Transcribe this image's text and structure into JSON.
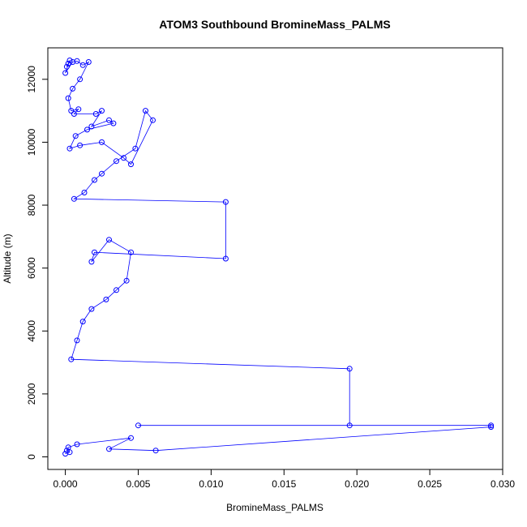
{
  "chart_data": {
    "type": "scatter",
    "title": "ATOM3 Southbound BromineMass_PALMS",
    "xlabel": "BromineMass_PALMS",
    "ylabel": "Altitude (m)",
    "xlim": [
      -0.0012,
      0.03
    ],
    "ylim": [
      -400,
      13000
    ],
    "x_ticks": [
      0.0,
      0.005,
      0.01,
      0.015,
      0.02,
      0.025,
      0.03
    ],
    "x_tick_labels": [
      "0.000",
      "0.005",
      "0.010",
      "0.015",
      "0.020",
      "0.025",
      "0.030"
    ],
    "y_ticks": [
      0,
      2000,
      4000,
      6000,
      8000,
      10000,
      12000
    ],
    "y_tick_labels": [
      "0",
      "2000",
      "4000",
      "6000",
      "8000",
      "10000",
      "12000"
    ],
    "grid": false,
    "legend": "none",
    "series": [
      {
        "color": "#0000ff",
        "marker": "open-circle",
        "line": true,
        "x": [
          0.0002,
          0.0001,
          0.0003,
          0.0,
          0.0005,
          0.0008,
          0.0012,
          0.0016,
          0.001,
          0.0005,
          0.0002,
          0.0004,
          0.0009,
          0.0006,
          0.0021,
          0.0025,
          0.0018,
          0.003,
          0.0033,
          0.0015,
          0.0007,
          0.0003,
          0.001,
          0.0025,
          0.004,
          0.0045,
          0.006,
          0.0055,
          0.0048,
          0.0035,
          0.0025,
          0.002,
          0.0013,
          0.0006,
          0.011,
          0.011,
          0.002,
          0.0018,
          0.003,
          0.0045,
          0.0042,
          0.0035,
          0.0028,
          0.0018,
          0.0012,
          0.0008,
          0.0004,
          0.0195,
          0.0195,
          0.005,
          0.0292,
          0.0292,
          0.0062,
          0.003,
          0.0045,
          0.0008,
          0.0002,
          0.0001,
          0.0003,
          0.0
        ],
        "y": [
          12500,
          12400,
          12600,
          12200,
          12550,
          12580,
          12450,
          12550,
          12000,
          11700,
          11400,
          11000,
          11050,
          10900,
          10900,
          11000,
          10500,
          10700,
          10600,
          10400,
          10200,
          9800,
          9900,
          10000,
          9500,
          9300,
          10700,
          11000,
          9800,
          9400,
          9000,
          8800,
          8400,
          8200,
          8100,
          6300,
          6500,
          6200,
          6900,
          6500,
          5600,
          5300,
          5000,
          4700,
          4300,
          3700,
          3100,
          2800,
          1000,
          1000,
          1000,
          950,
          200,
          250,
          600,
          400,
          300,
          200,
          150,
          100
        ]
      }
    ]
  }
}
